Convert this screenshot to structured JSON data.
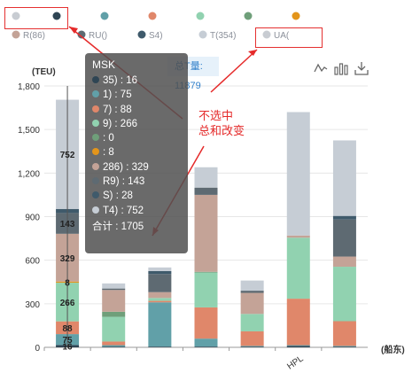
{
  "legend": [
    {
      "name": "",
      "color": "#c8ccd2"
    },
    {
      "name": "",
      "color": "#2f4554"
    },
    {
      "name": "",
      "color": "#61a0a8"
    },
    {
      "name": "",
      "color": "#e0876a"
    },
    {
      "name": "",
      "color": "#91d2b0"
    },
    {
      "name": "",
      "color": "#6f9f7a"
    },
    {
      "name": "",
      "color": "#e3951b"
    },
    {
      "name": "R(86)",
      "color": "#c4a397"
    },
    {
      "name": "RU()",
      "color": "#5e6a72"
    },
    {
      "name": "S4)",
      "color": "#3f5a6b"
    },
    {
      "name": "T(354)",
      "color": "#c6cdd5"
    },
    {
      "name": "UA(",
      "color": "#c8ccd2"
    }
  ],
  "toolbar": {
    "total_label": "总T量: 11879",
    "icons": [
      "line-chart-icon",
      "bar-chart-icon",
      "download-icon"
    ]
  },
  "tooltip": {
    "title": "MSK",
    "rows": [
      {
        "label": "35) : 16",
        "color": "#2f4554"
      },
      {
        "label": "1) : 75",
        "color": "#61a0a8"
      },
      {
        "label": "7) : 88",
        "color": "#e0876a"
      },
      {
        "label": "9) : 266",
        "color": "#91d2b0"
      },
      {
        "label": ": 0",
        "color": "#6f9f7a"
      },
      {
        "label": ": 8",
        "color": "#e3951b"
      },
      {
        "label": "286) : 329",
        "color": "#c4a397"
      },
      {
        "label": "R9) : 143",
        "color": "#5e6a72"
      },
      {
        "label": "S) : 28",
        "color": "#3f5a6b"
      },
      {
        "label": "T4) : 752",
        "color": "#c6cdd5"
      }
    ],
    "total": "合计 : 1705"
  },
  "annotation": {
    "line1": "不选中",
    "line2": "总和改变"
  },
  "chart_data": {
    "type": "bar",
    "stacked": true,
    "y_unit": "(TEU)",
    "x_unit": "(船东)",
    "ylim": [
      0,
      1800
    ],
    "yticks": [
      "0",
      "300",
      "600",
      "900",
      "1,200",
      "1,500",
      "1,800"
    ],
    "grid": true,
    "categories": [
      "",
      "",
      "",
      "",
      "",
      "HPL",
      ""
    ],
    "series": [
      {
        "color": "#2f4554",
        "values": [
          16,
          5,
          5,
          5,
          5,
          10,
          5
        ]
      },
      {
        "color": "#61a0a8",
        "values": [
          75,
          10,
          305,
          55,
          5,
          5,
          5
        ]
      },
      {
        "color": "#e0876a",
        "values": [
          88,
          25,
          10,
          215,
          100,
          320,
          170
        ]
      },
      {
        "color": "#91d2b0",
        "values": [
          266,
          170,
          20,
          240,
          120,
          420,
          375
        ]
      },
      {
        "color": "#6f9f7a",
        "values": [
          0,
          35,
          0,
          5,
          0,
          0,
          0
        ]
      },
      {
        "color": "#e3951b",
        "values": [
          8,
          0,
          0,
          0,
          0,
          0,
          0
        ]
      },
      {
        "color": "#c4a397",
        "values": [
          329,
          150,
          40,
          530,
          145,
          15,
          70
        ]
      },
      {
        "color": "#5e6a72",
        "values": [
          143,
          10,
          125,
          50,
          15,
          0,
          255
        ]
      },
      {
        "color": "#3f5a6b",
        "values": [
          28,
          0,
          20,
          0,
          0,
          0,
          25
        ]
      },
      {
        "color": "#c6cdd5",
        "values": [
          752,
          35,
          25,
          140,
          70,
          850,
          520
        ]
      }
    ],
    "segment_labels": [
      "752",
      "143",
      "329",
      "8",
      "266",
      "88",
      "75",
      "16"
    ]
  }
}
